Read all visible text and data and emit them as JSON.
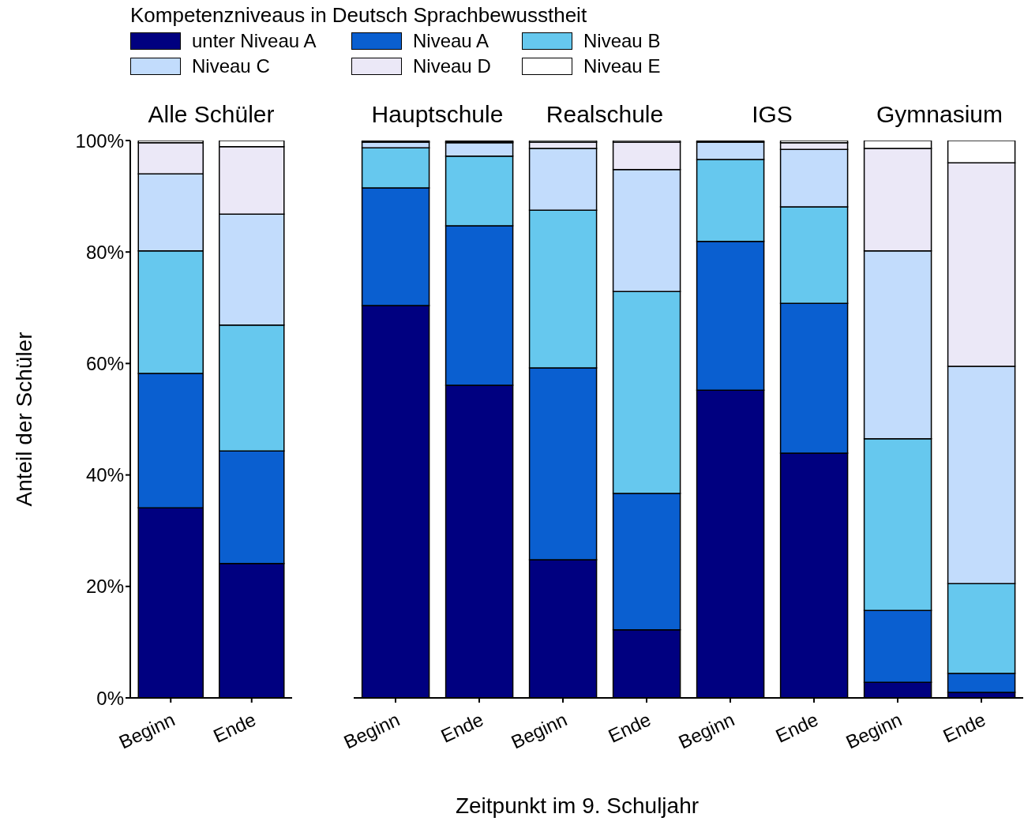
{
  "chart_data": [
    {
      "type": "bar",
      "title": "Alle Schüler",
      "stacked": true,
      "legend": "top",
      "legend_title": "Kompetenzniveaus in Deutsch Sprachbewusstheit",
      "ylabel": "Anteil der Schüler",
      "categories": [
        "Beginn",
        "Ende"
      ],
      "ylim": [
        0,
        100
      ],
      "yticks": [
        {
          "value": 0,
          "label": "0%"
        },
        {
          "value": 20,
          "label": "20%"
        },
        {
          "value": 40,
          "label": "40%"
        },
        {
          "value": 60,
          "label": "60%"
        },
        {
          "value": 80,
          "label": "80%"
        },
        {
          "value": 100,
          "label": "100%"
        }
      ],
      "series": [
        {
          "name": "unter Niveau A",
          "color": "#000080",
          "values": [
            34.1,
            24.1
          ]
        },
        {
          "name": "Niveau A",
          "color": "#0a5fd0",
          "values": [
            24.1,
            20.2
          ]
        },
        {
          "name": "Niveau B",
          "color": "#66c8ee",
          "values": [
            22.0,
            22.6
          ]
        },
        {
          "name": "Niveau C",
          "color": "#c2dcfc",
          "values": [
            13.8,
            19.9
          ]
        },
        {
          "name": "Niveau D",
          "color": "#ebe8f7",
          "values": [
            5.6,
            12.1
          ]
        },
        {
          "name": "Niveau E",
          "color": "#ffffff",
          "values": [
            0.4,
            1.1
          ]
        }
      ]
    },
    {
      "type": "bar",
      "title": "Hauptschule",
      "stacked": true,
      "tick_labels": "x",
      "categories": [
        "Beginn",
        "Ende"
      ],
      "ylim": [
        0,
        100
      ],
      "series": [
        {
          "color": "#000080",
          "values": [
            70.4,
            56.1
          ]
        },
        {
          "color": "#0a5fd0",
          "values": [
            21.1,
            28.6
          ]
        },
        {
          "color": "#66c8ee",
          "values": [
            7.2,
            12.5
          ]
        },
        {
          "color": "#c2dcfc",
          "values": [
            1.0,
            2.4
          ]
        },
        {
          "color": "#ebe8f7",
          "values": [
            null,
            0.2
          ]
        },
        {
          "color": "#ffffff",
          "values": [
            0.2,
            0.2
          ]
        }
      ]
    },
    {
      "type": "bar",
      "title": "Realschule",
      "stacked": true,
      "tick_labels": "x",
      "xlabel": "Zeitpunkt im 9. Schuljahr",
      "categories": [
        "Beginn",
        "Ende"
      ],
      "ylim": [
        0,
        100
      ],
      "series": [
        {
          "color": "#000080",
          "values": [
            24.8,
            12.2
          ]
        },
        {
          "color": "#0a5fd0",
          "values": [
            34.4,
            24.5
          ]
        },
        {
          "color": "#66c8ee",
          "values": [
            28.3,
            36.2
          ]
        },
        {
          "color": "#c2dcfc",
          "values": [
            11.1,
            21.9
          ]
        },
        {
          "color": "#ebe8f7",
          "values": [
            1.1,
            4.9
          ]
        },
        {
          "color": "#ffffff",
          "values": [
            0.3,
            0.3
          ]
        }
      ]
    },
    {
      "type": "bar",
      "title": "IGS",
      "stacked": true,
      "tick_labels": "x",
      "categories": [
        "Beginn",
        "Ende"
      ],
      "ylim": [
        0,
        100
      ],
      "series": [
        {
          "color": "#000080",
          "values": [
            55.2,
            43.9
          ]
        },
        {
          "color": "#0a5fd0",
          "values": [
            26.7,
            26.9
          ]
        },
        {
          "color": "#66c8ee",
          "values": [
            14.7,
            17.3
          ]
        },
        {
          "color": "#c2dcfc",
          "values": [
            3.1,
            10.3
          ]
        },
        {
          "color": "#ebe8f7",
          "values": [
            null,
            1.2
          ]
        },
        {
          "color": "#ffffff",
          "values": [
            0.2,
            0.4
          ]
        }
      ]
    },
    {
      "type": "bar",
      "title": "Gymnasium",
      "stacked": true,
      "tick_labels": "x",
      "categories": [
        "Beginn",
        "Ende"
      ],
      "ylim": [
        0,
        100
      ],
      "series": [
        {
          "color": "#000080",
          "values": [
            2.8,
            1.0
          ]
        },
        {
          "color": "#0a5fd0",
          "values": [
            12.9,
            3.4
          ]
        },
        {
          "color": "#66c8ee",
          "values": [
            30.8,
            16.1
          ]
        },
        {
          "color": "#c2dcfc",
          "values": [
            33.7,
            39.0
          ]
        },
        {
          "color": "#ebe8f7",
          "values": [
            18.4,
            36.5
          ]
        },
        {
          "color": "#ffffff",
          "values": [
            1.4,
            4.0
          ]
        }
      ]
    }
  ]
}
